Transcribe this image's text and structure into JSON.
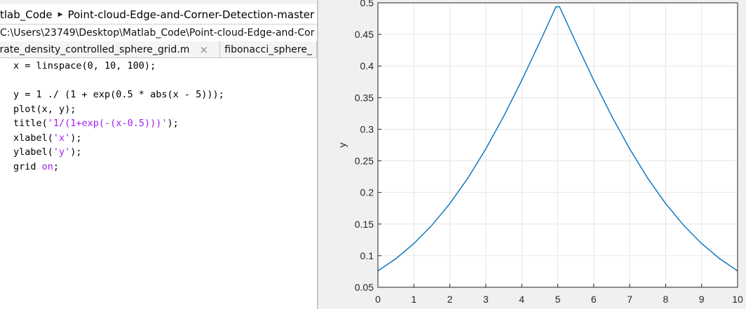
{
  "address_bar": {
    "crumbs": [
      "tlab_Code",
      "Point-cloud-Edge-and-Corner-Detection-master"
    ]
  },
  "path_row": {
    "path": "C:\\Users\\23749\\Desktop\\Matlab_Code\\Point-cloud-Edge-and-Cor"
  },
  "tabs": [
    {
      "label": "nerate_density_controlled_sphere_grid.m",
      "close_glyph": "×"
    },
    {
      "label": "fibonacci_sphere_"
    }
  ],
  "code_lines": [
    {
      "text": "x = linspace(0, 10, 100);"
    },
    {
      "text": ""
    },
    {
      "text": "y = 1 ./ (1 + exp(0.5 * abs(x - 5)));"
    },
    {
      "text": "plot(x, y);"
    },
    {
      "pre": "title(",
      "str": "'1/(1+exp(-(x-0.5)))'",
      "post": ");"
    },
    {
      "pre": "xlabel(",
      "str": "'x'",
      "post": ");"
    },
    {
      "pre": "ylabel(",
      "str": "'y'",
      "post": ");"
    },
    {
      "pre": "grid ",
      "kw": "on",
      "post": ";"
    }
  ],
  "colors": {
    "line": "#0072bd",
    "grid": "#e6e6e6",
    "axis": "#262626",
    "string": "#a020f0"
  },
  "chart_data": {
    "type": "line",
    "xlabel": "",
    "ylabel": "y",
    "xlim": [
      0,
      10
    ],
    "ylim": [
      0.05,
      0.5
    ],
    "xticks": [
      0,
      1,
      2,
      3,
      4,
      5,
      6,
      7,
      8,
      9,
      10
    ],
    "yticks": [
      0.05,
      0.1,
      0.15,
      0.2,
      0.25,
      0.3,
      0.35,
      0.4,
      0.45,
      0.5
    ],
    "grid": true,
    "function": "y = 1 ./ (1 + exp(0.5 * abs(x - 5)))",
    "x": [
      0,
      0.5,
      1,
      1.5,
      2,
      2.5,
      3,
      3.5,
      4,
      4.5,
      4.95,
      5.05,
      5.5,
      6,
      6.5,
      7,
      7.5,
      8,
      8.5,
      9,
      9.5,
      10
    ],
    "y": [
      0.0759,
      0.0953,
      0.1192,
      0.148,
      0.1824,
      0.2227,
      0.2689,
      0.3208,
      0.3775,
      0.4378,
      0.4937,
      0.4937,
      0.4378,
      0.3775,
      0.3208,
      0.2689,
      0.2227,
      0.1824,
      0.148,
      0.1192,
      0.0953,
      0.0759
    ]
  }
}
